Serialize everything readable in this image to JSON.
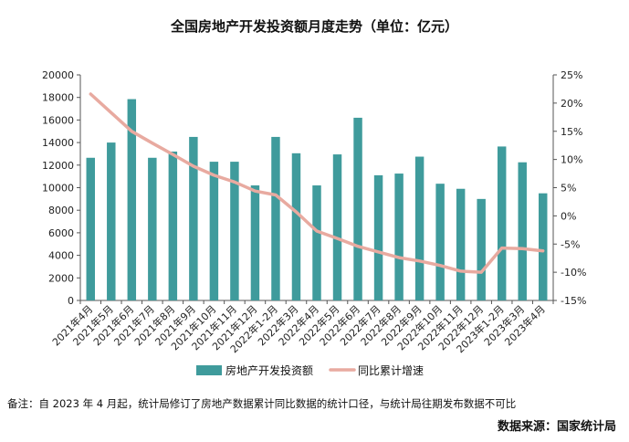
{
  "chart_data": {
    "type": "bar",
    "title": "全国房地产开发投资额月度走势（单位：亿元）",
    "categories": [
      "2021年4月",
      "2021年5月",
      "2021年6月",
      "2021年7月",
      "2021年8月",
      "2021年9月",
      "2021年10月",
      "2021年11月",
      "2021年12月",
      "2022年1-2月",
      "2022年3月",
      "2022年4月",
      "2022年5月",
      "2022年6月",
      "2022年7月",
      "2022年8月",
      "2022年9月",
      "2022年10月",
      "2022年11月",
      "2022年12月",
      "2023年1-2月",
      "2023年3月",
      "2023年4月"
    ],
    "series": [
      {
        "name": "房地产开发投资额",
        "type": "bar",
        "axis": "left",
        "color": "#3f9b9c",
        "values": [
          12650,
          14000,
          17850,
          12650,
          13200,
          14500,
          12300,
          12300,
          10200,
          14500,
          13050,
          10200,
          12950,
          16200,
          11100,
          11250,
          12750,
          10350,
          9900,
          9000,
          13650,
          12250,
          9500
        ]
      },
      {
        "name": "同比累计增速",
        "type": "line",
        "axis": "right",
        "unit": "%",
        "color": "#e8aaa0",
        "values": [
          21.6,
          18.3,
          15.0,
          12.9,
          10.9,
          8.8,
          7.2,
          6.0,
          4.4,
          3.7,
          0.7,
          -2.7,
          -4.0,
          -5.4,
          -6.4,
          -7.4,
          -8.0,
          -8.8,
          -9.8,
          -10.0,
          -5.7,
          -5.8,
          -6.2
        ]
      }
    ],
    "ylim": [
      0,
      20000
    ],
    "yticks": [
      "0",
      "2000",
      "4000",
      "6000",
      "8000",
      "10000",
      "12000",
      "14000",
      "16000",
      "18000",
      "20000"
    ],
    "y2lim": [
      -15,
      25
    ],
    "y2ticks": [
      "-15%",
      "-10%",
      "-5%",
      "0%",
      "5%",
      "10%",
      "15%",
      "20%",
      "25%"
    ],
    "grid": false,
    "legend_position": "bottom"
  },
  "footnote": "备注：自 2023 年 4 月起，统计局修订了房地产数据累计同比数据的统计口径，与统计局往期发布数据不可比",
  "source": "数据来源：国家统计局",
  "colors": {
    "bar": "#3f9b9c",
    "line": "#e8aaa0",
    "axis": "#555555"
  }
}
